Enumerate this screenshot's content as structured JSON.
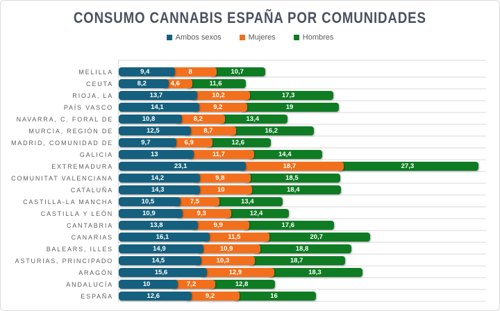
{
  "chart_data": {
    "type": "bar",
    "orientation": "horizontal",
    "stacked": false,
    "grouped_display": "stacked-look",
    "title": "CONSUMO CANNABIS ESPAÑA POR COMUNIDADES",
    "title_color": "#4a5260",
    "legend_position": "top",
    "grid": "row-lines",
    "xlim": [
      0,
      70
    ],
    "series": [
      {
        "name": "Ambos sexos",
        "color": "#15607e"
      },
      {
        "name": "Mujeres",
        "color": "#f2701d"
      },
      {
        "name": "Hombres",
        "color": "#0f7c24"
      }
    ],
    "rows": [
      {
        "label": "MELILLA",
        "values": [
          "9,4",
          "8",
          "10,7"
        ]
      },
      {
        "label": "CEUTA",
        "values": [
          "8,2",
          "4,6",
          "11,6"
        ]
      },
      {
        "label": "RIOJA, LA",
        "values": [
          "13,7",
          "10,2",
          "17,3"
        ]
      },
      {
        "label": "PAÍS VASCO",
        "values": [
          "14,1",
          "9,2",
          "19"
        ]
      },
      {
        "label": "NAVARRA, C. FORAL DE",
        "values": [
          "10,8",
          "8,2",
          "13,4"
        ]
      },
      {
        "label": "MURCIA, REGIÓN DE",
        "values": [
          "12,5",
          "8,7",
          "16,2"
        ]
      },
      {
        "label": "MADRID, COMUNIDAD DE",
        "values": [
          "9,7",
          "6,9",
          "12,6"
        ]
      },
      {
        "label": "GALICIA",
        "values": [
          "13",
          "11,7",
          "14,4"
        ]
      },
      {
        "label": "EXTREMADURA",
        "values": [
          "23,1",
          "18,7",
          "27,3"
        ]
      },
      {
        "label": "COMUNITAT VALENCIANA",
        "values": [
          "14,2",
          "9,8",
          "18,5"
        ]
      },
      {
        "label": "CATALUÑA",
        "values": [
          "14,3",
          "10",
          "18,4"
        ]
      },
      {
        "label": "CASTILLA-LA MANCHA",
        "values": [
          "10,5",
          "7,5",
          "13,4"
        ]
      },
      {
        "label": "CASTILLA Y LEÓN",
        "values": [
          "10,9",
          "9,3",
          "12,4"
        ]
      },
      {
        "label": "CANTABRIA",
        "values": [
          "13,8",
          "9,9",
          "17,6"
        ]
      },
      {
        "label": "CANARIAS",
        "values": [
          "16,1",
          "11,5",
          "20,7"
        ]
      },
      {
        "label": "BALEARS, ILLES",
        "values": [
          "14,9",
          "10,9",
          "18,8"
        ]
      },
      {
        "label": "ASTURIAS, PRINCIPADO",
        "values": [
          "14,5",
          "10,3",
          "18,7"
        ]
      },
      {
        "label": "ARAGÓN",
        "values": [
          "15,6",
          "12,9",
          "18,3"
        ]
      },
      {
        "label": "ANDALUCÍA",
        "values": [
          "10",
          "7,2",
          "12,8"
        ]
      },
      {
        "label": "ESPAÑA",
        "values": [
          "12,6",
          "9,2",
          "16"
        ]
      }
    ]
  }
}
